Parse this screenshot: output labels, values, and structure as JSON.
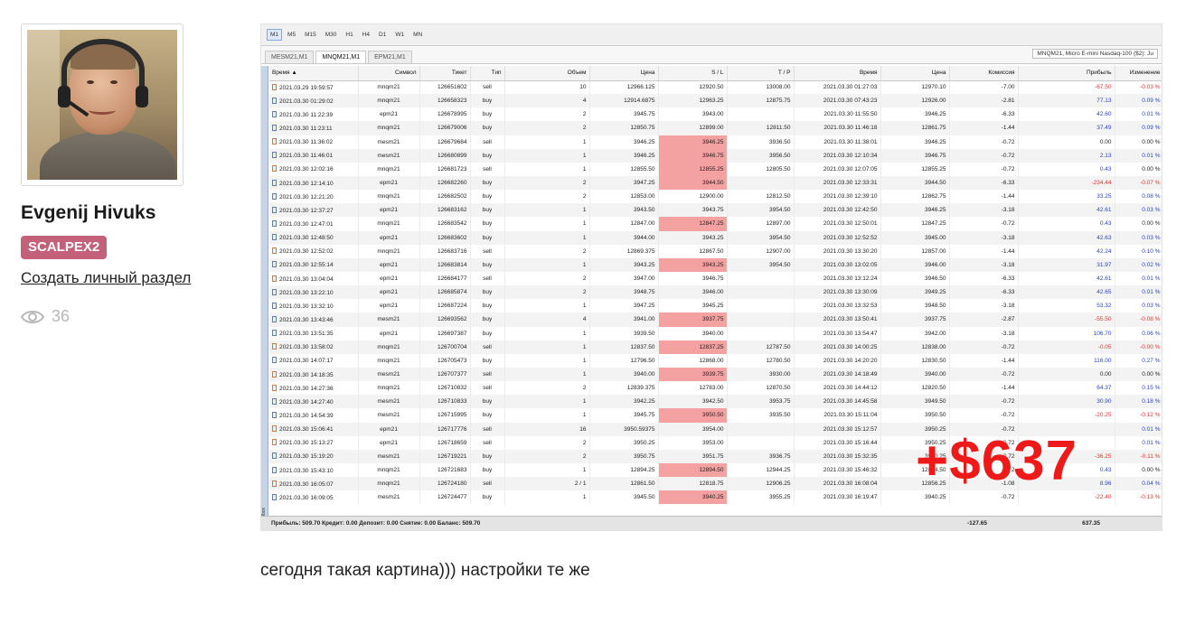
{
  "author": {
    "name": "Evgenij Hivuks",
    "badge": "SCALPEX2",
    "create_link": "Создать личный раздел",
    "views": "36"
  },
  "terminal": {
    "timeframes": [
      "M1",
      "M5",
      "M15",
      "M30",
      "H1",
      "H4",
      "D1",
      "W1",
      "MN"
    ],
    "active_timeframe": "M1",
    "tabs": [
      "MESM21,M1",
      "MNQM21,M1",
      "EPM21,M1"
    ],
    "active_tab": "MNQM21,M1",
    "tab_right": "MNQM21, Micro E-mini Nasdaq-100 ($2): Ju",
    "side_label": "Toolbox",
    "columns": [
      "Время ▲",
      "Символ",
      "Тикет",
      "Тип",
      "Объем",
      "Цена",
      "S / L",
      "T / P",
      "Время",
      "Цена",
      "Комиссия",
      "Прибыль",
      "Изменение"
    ],
    "rows": [
      [
        "2021.03.29 19:59:57",
        "mnqm21",
        "126651602",
        "sell",
        "10",
        "12966.125",
        "12920.50",
        "13008.00",
        "2021.03.30 01:27:03",
        "12970.10",
        "-7.00",
        "-67.50",
        "-0.03 %"
      ],
      [
        "2021.03.30 01:29:02",
        "mnqm21",
        "126658323",
        "buy",
        "4",
        "12914.6875",
        "12963.25",
        "12875.75",
        "2021.03.30 07:43:23",
        "12926.00",
        "-2.81",
        "77.13",
        "0.09 %"
      ],
      [
        "2021.03.30 11:22:39",
        "epm21",
        "126678995",
        "buy",
        "2",
        "3945.75",
        "3943.00",
        "",
        "2021.03.30 11:55:50",
        "3946.25",
        "-6.33",
        "42.60",
        "0.01 %"
      ],
      [
        "2021.03.30 11:23:11",
        "mnqm21",
        "126679006",
        "buy",
        "2",
        "12850.75",
        "12899.00",
        "12811.50",
        "2021.03.30 11:46:18",
        "12861.75",
        "-1.44",
        "37.49",
        "0.09 %"
      ],
      [
        "2021.03.30 11:36:02",
        "mesm21",
        "126679684",
        "sell",
        "1",
        "3946.25",
        "3946.25",
        "3936.50",
        "2021.03.30 11:38:01",
        "3946.25",
        "-0.72",
        "0.00",
        "0.00 %"
      ],
      [
        "2021.03.30 11:46:01",
        "mesm21",
        "126680899",
        "buy",
        "1",
        "3946.25",
        "3946.75",
        "3956.50",
        "2021.03.30 12:10:34",
        "3946.75",
        "-0.72",
        "2.13",
        "0.01 %"
      ],
      [
        "2021.03.30 12:02:16",
        "mnqm21",
        "126681723",
        "sell",
        "1",
        "12855.50",
        "12855.25",
        "12805.50",
        "2021.03.30 12:07:05",
        "12855.25",
        "-0.72",
        "0.43",
        "0.00 %"
      ],
      [
        "2021.03.30 12:14:10",
        "epm21",
        "126682260",
        "buy",
        "2",
        "3947.25",
        "3944.50",
        "",
        "2021.03.30 12:33:31",
        "3944.50",
        "-6.33",
        "-234.44",
        "-0.07 %"
      ],
      [
        "2021.03.30 12:21:20",
        "mnqm21",
        "126682502",
        "buy",
        "2",
        "12853.00",
        "12900.00",
        "12812.50",
        "2021.03.30 12:39:10",
        "12862.75",
        "-1.44",
        "33.25",
        "0.08 %"
      ],
      [
        "2021.03.30 12:37:27",
        "epm21",
        "126683162",
        "buy",
        "1",
        "3943.50",
        "3943.75",
        "3954.50",
        "2021.03.30 12:42:50",
        "3946.25",
        "-3.18",
        "42.61",
        "0.03 %"
      ],
      [
        "2021.03.30 12:47:01",
        "mnqm21",
        "126683542",
        "buy",
        "1",
        "12847.00",
        "12847.25",
        "12897.00",
        "2021.03.30 12:50:01",
        "12847.25",
        "-0.72",
        "0.43",
        "0.00 %"
      ],
      [
        "2021.03.30 12:48:50",
        "epm21",
        "126683602",
        "buy",
        "1",
        "3944.00",
        "3943.25",
        "3954.50",
        "2021.03.30 12:52:52",
        "3945.00",
        "-3.18",
        "42.63",
        "0.03 %"
      ],
      [
        "2021.03.30 12:52:02",
        "mnqm21",
        "126683716",
        "sell",
        "2",
        "12869.375",
        "12867.50",
        "12907.00",
        "2021.03.30 13:30:20",
        "12857.00",
        "-1.44",
        "42.24",
        "0.10 %"
      ],
      [
        "2021.03.30 12:55:14",
        "epm21",
        "126683814",
        "buy",
        "1",
        "3943.25",
        "3943.25",
        "3954.50",
        "2021.03.30 13:02:05",
        "3946.00",
        "-3.18",
        "31.97",
        "0.02 %"
      ],
      [
        "2021.03.30 13:04:04",
        "epm21",
        "126684177",
        "sell",
        "2",
        "3947.00",
        "3946.75",
        "",
        "2021.03.30 13:12:24",
        "3946.50",
        "-6.33",
        "42.61",
        "0.01 %"
      ],
      [
        "2021.03.30 13:22:10",
        "epm21",
        "126685874",
        "buy",
        "2",
        "3948.75",
        "3946.00",
        "",
        "2021.03.30 13:30:09",
        "3949.25",
        "-6.33",
        "42.65",
        "0.01 %"
      ],
      [
        "2021.03.30 13:32:10",
        "epm21",
        "126687224",
        "buy",
        "1",
        "3947.25",
        "3945.25",
        "",
        "2021.03.30 13:32:53",
        "3948.50",
        "-3.18",
        "53.32",
        "0.03 %"
      ],
      [
        "2021.03.30 13:43:46",
        "mesm21",
        "126693562",
        "buy",
        "4",
        "3941.00",
        "3937.75",
        "",
        "2021.03.30 13:50:41",
        "3937.75",
        "-2.87",
        "-55.50",
        "-0.08 %"
      ],
      [
        "2021.03.30 13:51:35",
        "epm21",
        "126697387",
        "buy",
        "1",
        "3939.50",
        "3940.00",
        "",
        "2021.03.30 13:54:47",
        "3942.00",
        "-3.18",
        "106.70",
        "0.06 %"
      ],
      [
        "2021.03.30 13:58:02",
        "mnqm21",
        "126700704",
        "sell",
        "1",
        "12837.50",
        "12837.25",
        "12787.50",
        "2021.03.30 14:00:25",
        "12838.00",
        "-0.72",
        "-0.05",
        "-0.00 %"
      ],
      [
        "2021.03.30 14:07:17",
        "mnqm21",
        "126705473",
        "buy",
        "1",
        "12796.50",
        "12868.00",
        "12780.50",
        "2021.03.30 14:20:20",
        "12830.50",
        "-1.44",
        "116.00",
        "0.27 %"
      ],
      [
        "2021.03.30 14:18:35",
        "mesm21",
        "126707377",
        "sell",
        "1",
        "3940.00",
        "3939.75",
        "3930.00",
        "2021.03.30 14:18:49",
        "3940.00",
        "-0.72",
        "0.00",
        "0.00 %"
      ],
      [
        "2021.03.30 14:27:36",
        "mnqm21",
        "126710832",
        "sell",
        "2",
        "12839.375",
        "12783.00",
        "12870.50",
        "2021.03.30 14:44:12",
        "12820.50",
        "-1.44",
        "64.37",
        "0.15 %"
      ],
      [
        "2021.03.30 14:27:40",
        "mesm21",
        "126710833",
        "buy",
        "1",
        "3942.25",
        "3942.50",
        "3953.75",
        "2021.03.30 14:45:58",
        "3949.50",
        "-0.72",
        "30.90",
        "0.18 %"
      ],
      [
        "2021.03.30 14:54:39",
        "mesm21",
        "126715995",
        "buy",
        "1",
        "3945.75",
        "3950.50",
        "3935.50",
        "2021.03.30 15:11:04",
        "3950.50",
        "-0.72",
        "-20.25",
        "-0.12 %"
      ],
      [
        "2021.03.30 15:06:41",
        "epm21",
        "126717776",
        "sell",
        "16",
        "3950.59375",
        "3954.00",
        "",
        "2021.03.30 15:12:57",
        "3950.25",
        "-0.72",
        "",
        "0.01 %"
      ],
      [
        "2021.03.30 15:13:27",
        "epm21",
        "126718659",
        "sell",
        "2",
        "3950.25",
        "3953.00",
        "",
        "2021.03.30 15:16:44",
        "3950.25",
        "-0.72",
        "",
        "0.01 %"
      ],
      [
        "2021.03.30 15:19:20",
        "mesm21",
        "126719221",
        "buy",
        "2",
        "3950.75",
        "3951.75",
        "3936.75",
        "2021.03.30 15:32:35",
        "3950.25",
        "-0.72",
        "-36.25",
        "-0.11 %"
      ],
      [
        "2021.03.30 15:43:10",
        "mnqm21",
        "126721683",
        "buy",
        "1",
        "12894.25",
        "12894.50",
        "12944.25",
        "2021.03.30 15:46:32",
        "12894.50",
        "-0.72",
        "0.43",
        "0.00 %"
      ],
      [
        "2021.03.30 16:05:07",
        "mnqm21",
        "126724180",
        "sell",
        "2 / 1",
        "12861.50",
        "12818.75",
        "12906.25",
        "2021.03.30 16:08:04",
        "12856.25",
        "-1.08",
        "8.96",
        "0.04 %"
      ],
      [
        "2021.03.30 16:09:05",
        "mesm21",
        "126724477",
        "buy",
        "1",
        "3945.50",
        "3940.25",
        "3955.25",
        "2021.03.30 16:19:47",
        "3940.25",
        "-0.72",
        "-22.40",
        "-0.13 %"
      ]
    ],
    "sl_hit_rows": [
      4,
      5,
      6,
      7,
      10,
      13,
      17,
      19,
      21,
      24,
      28,
      30
    ],
    "status": {
      "summary": "Прибыль: 509.70  Кредит: 0.00  Депозит: 0.00  Снятие: 0.00  Баланс: 509.70",
      "commission_total": "-127.65",
      "profit_total": "637.35"
    },
    "overlay": "+$637",
    "colors": {
      "sl_hit": "#f3a1a1",
      "positive": "#2a43c9",
      "negative": "#e0352f",
      "overlay": "#ee1a1a",
      "badge": "#c4617a"
    }
  },
  "caption": "сегодня такая картина))) настройки те же"
}
